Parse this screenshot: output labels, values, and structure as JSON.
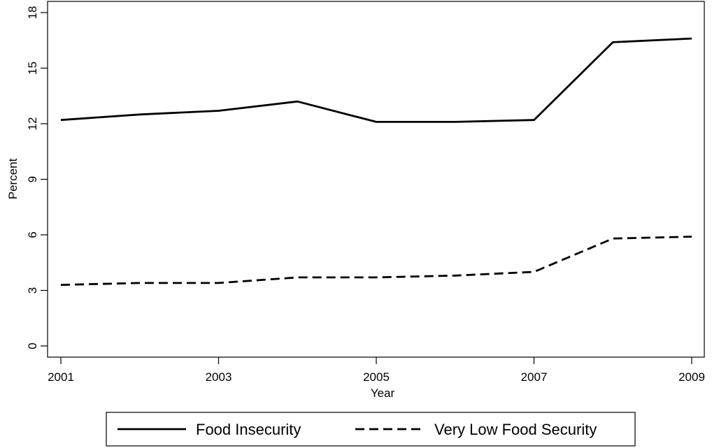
{
  "chart_data": {
    "type": "line",
    "title": "",
    "xlabel": "Year",
    "ylabel": "Percent",
    "x": [
      2001,
      2002,
      2003,
      2004,
      2005,
      2006,
      2007,
      2008,
      2009
    ],
    "xlim": [
      2001,
      2009
    ],
    "ylim": [
      0,
      18
    ],
    "x_ticks": [
      "2001",
      "2003",
      "2005",
      "2007",
      "2009"
    ],
    "y_ticks": [
      "0",
      "3",
      "6",
      "9",
      "12",
      "15",
      "18"
    ],
    "grid": false,
    "legend_position": "bottom",
    "series": [
      {
        "name": "Food Insecurity",
        "line_style": "solid",
        "color": "#000000",
        "values": [
          12.2,
          12.5,
          12.7,
          13.2,
          12.1,
          12.1,
          12.2,
          16.4,
          16.6
        ]
      },
      {
        "name": "Very Low Food Security",
        "line_style": "dashed",
        "color": "#000000",
        "values": [
          3.3,
          3.4,
          3.4,
          3.7,
          3.7,
          3.8,
          4.0,
          5.8,
          5.9
        ]
      }
    ]
  }
}
